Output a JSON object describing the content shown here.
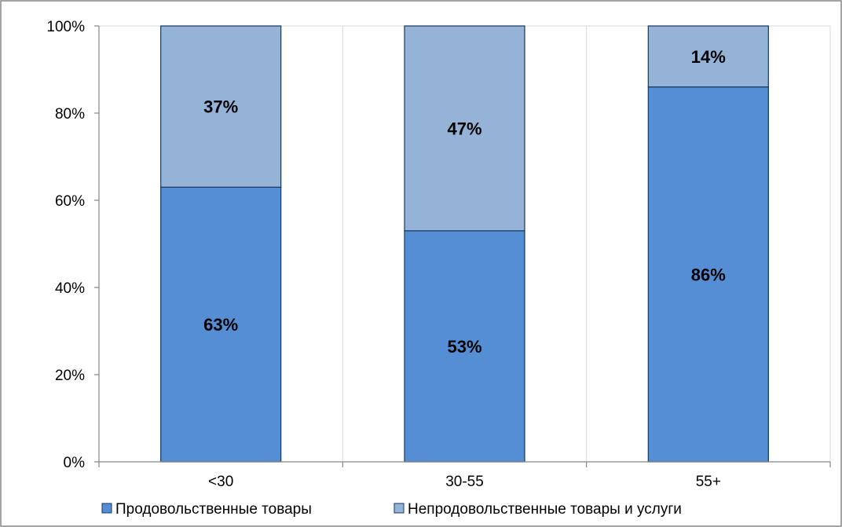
{
  "chart_data": {
    "type": "bar",
    "stacked": true,
    "categories": [
      "<30",
      "30-55",
      "55+"
    ],
    "series": [
      {
        "name": "Продовольственные товары",
        "values": [
          63,
          53,
          86
        ],
        "labels": [
          "63%",
          "53%",
          "86%"
        ],
        "color": "#558ED5"
      },
      {
        "name": "Непродовольственные товары и услуги",
        "values": [
          37,
          47,
          14
        ],
        "labels": [
          "37%",
          "47%",
          "14%"
        ],
        "color": "#95B3D7"
      }
    ],
    "y_ticks": [
      "0%",
      "20%",
      "40%",
      "60%",
      "80%",
      "100%"
    ],
    "ylim": [
      0,
      100
    ],
    "grid": "vertical",
    "legend": "bottom"
  }
}
